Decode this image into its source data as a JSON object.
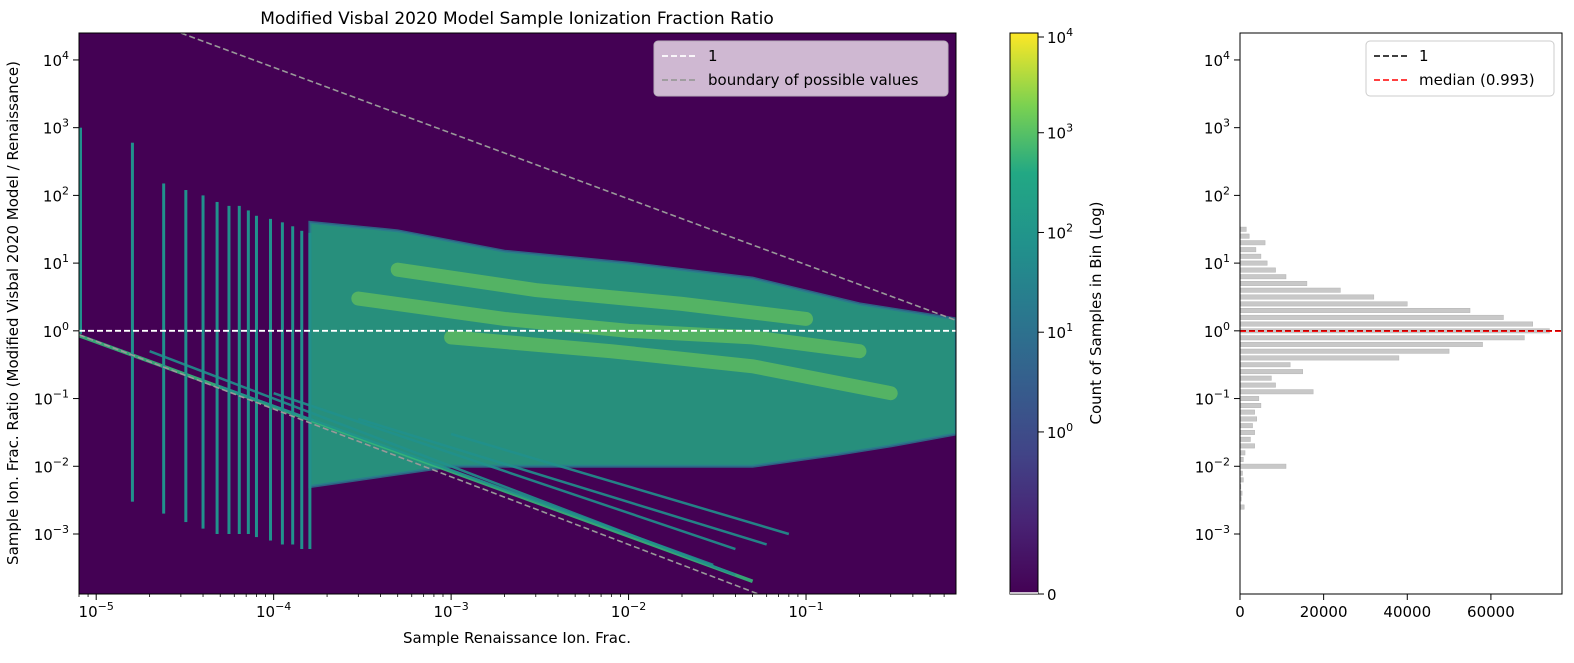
{
  "chart_data": [
    {
      "type": "heatmap",
      "title": "Modified Visbal 2020 Model Sample Ionization Fraction Ratio",
      "xlabel": "Sample Renaissance Ion. Frac.",
      "ylabel": "Sample Ion. Frac. Ratio (Modified Visbal 2020 Model / Renaissance)",
      "x_scale": "log",
      "y_scale": "log",
      "xlim": [
        8e-06,
        0.7
      ],
      "ylim": [
        0.00013,
        25000.0
      ],
      "xticks": [
        {
          "value": 1e-05,
          "base": "10",
          "exp": "−5"
        },
        {
          "value": 0.0001,
          "base": "10",
          "exp": "−4"
        },
        {
          "value": 0.001,
          "base": "10",
          "exp": "−3"
        },
        {
          "value": 0.01,
          "base": "10",
          "exp": "−2"
        },
        {
          "value": 0.1,
          "base": "10",
          "exp": "−1"
        }
      ],
      "yticks": [
        {
          "value": 0.001,
          "base": "10",
          "exp": "−3"
        },
        {
          "value": 0.01,
          "base": "10",
          "exp": "−2"
        },
        {
          "value": 0.1,
          "base": "10",
          "exp": "−1"
        },
        {
          "value": 1,
          "base": "10",
          "exp": "0"
        },
        {
          "value": 10,
          "base": "10",
          "exp": "1"
        },
        {
          "value": 100,
          "base": "10",
          "exp": "2"
        },
        {
          "value": 1000,
          "base": "10",
          "exp": "3"
        },
        {
          "value": 10000,
          "base": "10",
          "exp": "4"
        }
      ],
      "background_color": "#440154",
      "reference_line": {
        "name": "1",
        "y": 1,
        "color": "#ffffff",
        "style": "dashed"
      },
      "boundary_lines": {
        "name": "boundary of possible values",
        "color": "#999999",
        "upper": {
          "x": [
            3e-05,
            0.7
          ],
          "y": [
            25000,
            1.43
          ]
        },
        "lower": {
          "x": [
            8e-06,
            0.7
          ],
          "y": [
            0.875,
            1e-05
          ]
        }
      },
      "legend": {
        "position": "top-right",
        "entries": [
          "1",
          "boundary of possible values"
        ]
      },
      "columns": [
        {
          "x": 1.6e-05,
          "ymin": 0.003,
          "ymax": 600
        },
        {
          "x": 2.4e-05,
          "ymin": 0.002,
          "ymax": 150
        },
        {
          "x": 3.2e-05,
          "ymin": 0.0015,
          "ymax": 120
        },
        {
          "x": 4e-05,
          "ymin": 0.0012,
          "ymax": 100
        },
        {
          "x": 4.8e-05,
          "ymin": 0.001,
          "ymax": 80
        },
        {
          "x": 5.6e-05,
          "ymin": 0.001,
          "ymax": 70
        },
        {
          "x": 6.4e-05,
          "ymin": 0.001,
          "ymax": 70
        },
        {
          "x": 7.2e-05,
          "ymin": 0.001,
          "ymax": 60
        },
        {
          "x": 8e-05,
          "ymin": 0.0009,
          "ymax": 50
        },
        {
          "x": 9.6e-05,
          "ymin": 0.0008,
          "ymax": 45
        },
        {
          "x": 0.000112,
          "ymin": 0.0007,
          "ymax": 40
        },
        {
          "x": 0.000128,
          "ymin": 0.0007,
          "ymax": 35
        },
        {
          "x": 0.000144,
          "ymin": 0.0006,
          "ymax": 30
        },
        {
          "x": 0.00016,
          "ymin": 0.0006,
          "ymax": 28
        }
      ],
      "main_region": {
        "upper": {
          "x": [
            0.00016,
            0.0005,
            0.002,
            0.01,
            0.05,
            0.2,
            0.7
          ],
          "y": [
            40,
            30,
            15,
            10,
            6,
            2.5,
            1.5
          ]
        },
        "lower": {
          "x": [
            0.00016,
            0.001,
            0.005,
            0.02,
            0.05,
            0.15,
            0.3,
            0.7
          ],
          "y": [
            0.005,
            0.01,
            0.01,
            0.01,
            0.01,
            0.015,
            0.02,
            0.03
          ]
        }
      },
      "diagonal_bands": [
        {
          "x": [
            8e-06,
            0.05
          ],
          "y": [
            0.85,
            0.0002
          ]
        },
        {
          "x": [
            2e-05,
            0.04
          ],
          "y": [
            0.5,
            0.00025
          ]
        },
        {
          "x": [
            5e-05,
            0.03
          ],
          "y": [
            0.15,
            0.00035
          ]
        },
        {
          "x": [
            0.0001,
            0.04
          ],
          "y": [
            0.12,
            0.0006
          ]
        },
        {
          "x": [
            0.0003,
            0.06
          ],
          "y": [
            0.05,
            0.0007
          ]
        },
        {
          "x": [
            0.001,
            0.08
          ],
          "y": [
            0.03,
            0.001
          ]
        }
      ],
      "bright_ridges": [
        {
          "x": [
            0.0003,
            0.002,
            0.01,
            0.05,
            0.2
          ],
          "y": [
            3,
            1.5,
            1.0,
            0.8,
            0.5
          ]
        },
        {
          "x": [
            0.0005,
            0.003,
            0.02,
            0.1
          ],
          "y": [
            8,
            4,
            2.5,
            1.5
          ]
        },
        {
          "x": [
            0.001,
            0.008,
            0.05,
            0.3
          ],
          "y": [
            0.8,
            0.5,
            0.3,
            0.12
          ]
        }
      ],
      "colorbar": {
        "label": "Count of Samples in Bin (Log)",
        "scale": "symlog",
        "colormap": "viridis",
        "ticks": [
          {
            "value": 0,
            "base": "0",
            "exp": ""
          },
          {
            "value": 1,
            "base": "10",
            "exp": "0"
          },
          {
            "value": 10,
            "base": "10",
            "exp": "1"
          },
          {
            "value": 100,
            "base": "10",
            "exp": "2"
          },
          {
            "value": 1000,
            "base": "10",
            "exp": "3"
          },
          {
            "value": 10000,
            "base": "10",
            "exp": "4"
          }
        ]
      }
    },
    {
      "type": "bar",
      "orientation": "horizontal",
      "xlim": [
        0,
        77000
      ],
      "ylim": [
        0.00013,
        25000.0
      ],
      "y_scale": "log",
      "xticks": [
        "0",
        "20000",
        "40000",
        "60000"
      ],
      "xtick_values": [
        0,
        20000,
        40000,
        60000
      ],
      "yticks": [
        {
          "value": 0.001,
          "base": "10",
          "exp": "−3"
        },
        {
          "value": 0.01,
          "base": "10",
          "exp": "−2"
        },
        {
          "value": 0.1,
          "base": "10",
          "exp": "−1"
        },
        {
          "value": 1,
          "base": "10",
          "exp": "0"
        },
        {
          "value": 10,
          "base": "10",
          "exp": "1"
        },
        {
          "value": 100,
          "base": "10",
          "exp": "2"
        },
        {
          "value": 1000,
          "base": "10",
          "exp": "3"
        },
        {
          "value": 10000,
          "base": "10",
          "exp": "4"
        }
      ],
      "bar_color": "#c8c8c8",
      "bins": [
        {
          "y": 0.0025,
          "count": 1000
        },
        {
          "y": 0.0033,
          "count": 300
        },
        {
          "y": 0.004,
          "count": 500
        },
        {
          "y": 0.005,
          "count": 200
        },
        {
          "y": 0.0063,
          "count": 800
        },
        {
          "y": 0.0079,
          "count": 600
        },
        {
          "y": 0.01,
          "count": 11000
        },
        {
          "y": 0.0126,
          "count": 800
        },
        {
          "y": 0.0158,
          "count": 1200
        },
        {
          "y": 0.02,
          "count": 3500
        },
        {
          "y": 0.025,
          "count": 2500
        },
        {
          "y": 0.0316,
          "count": 3500
        },
        {
          "y": 0.0398,
          "count": 3000
        },
        {
          "y": 0.05,
          "count": 4000
        },
        {
          "y": 0.063,
          "count": 3500
        },
        {
          "y": 0.079,
          "count": 5000
        },
        {
          "y": 0.1,
          "count": 4500
        },
        {
          "y": 0.126,
          "count": 17500
        },
        {
          "y": 0.158,
          "count": 8500
        },
        {
          "y": 0.2,
          "count": 7500
        },
        {
          "y": 0.25,
          "count": 15000
        },
        {
          "y": 0.316,
          "count": 12000
        },
        {
          "y": 0.398,
          "count": 38000
        },
        {
          "y": 0.5,
          "count": 50000
        },
        {
          "y": 0.63,
          "count": 58000
        },
        {
          "y": 0.79,
          "count": 68000
        },
        {
          "y": 1.0,
          "count": 74000
        },
        {
          "y": 1.26,
          "count": 70000
        },
        {
          "y": 1.58,
          "count": 63000
        },
        {
          "y": 2.0,
          "count": 55000
        },
        {
          "y": 2.5,
          "count": 40000
        },
        {
          "y": 3.16,
          "count": 32000
        },
        {
          "y": 3.98,
          "count": 24000
        },
        {
          "y": 5.0,
          "count": 16000
        },
        {
          "y": 6.3,
          "count": 11000
        },
        {
          "y": 7.9,
          "count": 8500
        },
        {
          "y": 10,
          "count": 6500
        },
        {
          "y": 12.6,
          "count": 5000
        },
        {
          "y": 15.8,
          "count": 3800
        },
        {
          "y": 20,
          "count": 6000
        },
        {
          "y": 25,
          "count": 2200
        },
        {
          "y": 31.6,
          "count": 1500
        }
      ],
      "median": {
        "value": 0.993,
        "color": "#ff0000"
      },
      "reference_line": {
        "name": "1",
        "y": 1,
        "color": "#000000"
      },
      "legend": {
        "position": "top-right",
        "entries": [
          "1",
          "median (0.993)"
        ]
      }
    }
  ]
}
